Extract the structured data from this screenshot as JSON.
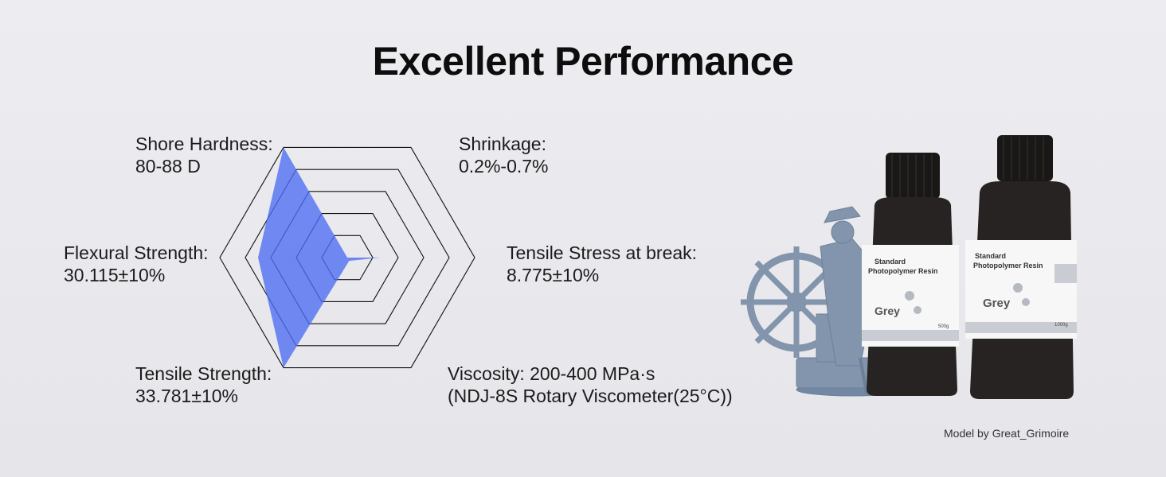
{
  "title": "Excellent Performance",
  "credit": "Model by Great_Grimoire",
  "properties": [
    {
      "name": "Shore Hardness:",
      "value": "80-88 D"
    },
    {
      "name": "Shrinkage:",
      "value": "0.2%-0.7%"
    },
    {
      "name": "Tensile Stress at break:",
      "value": "8.775±10%"
    },
    {
      "name": "Viscosity: 200-400 MPa·s",
      "value": "(NDJ-8S Rotary Viscometer(25°C))"
    },
    {
      "name": "Tensile Strength:",
      "value": "33.781±10%"
    },
    {
      "name": "Flexural Strength:",
      "value": "30.115±10%"
    }
  ],
  "chart_data": {
    "type": "radar",
    "axes": [
      "Shore Hardness",
      "Shrinkage",
      "Tensile Stress at break",
      "Viscosity",
      "Tensile Strength",
      "Flexural Strength"
    ],
    "rings": 5,
    "values": [
      5,
      0,
      1.3,
      0.15,
      5,
      3.5
    ],
    "max": 5,
    "fill_color": "#4d6cf2",
    "grid_color": "#111111"
  },
  "product": {
    "bottle_small": {
      "line1": "Standard",
      "line2": "Photopolymer Resin",
      "color_name": "Grey",
      "weight": "500g"
    },
    "bottle_large": {
      "line1": "Standard",
      "line2": "Photopolymer Resin",
      "color_name": "Grey",
      "weight": "1000g"
    }
  }
}
